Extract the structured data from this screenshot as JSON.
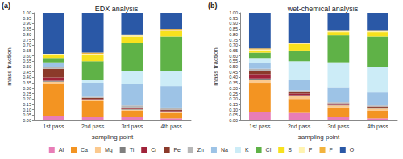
{
  "chart_data": [
    {
      "type": "bar",
      "title": "EDX analysis",
      "annotations": [
        "(a)"
      ],
      "xlabel": "sampling point",
      "ylabel": "mass fraction",
      "categories": [
        "1st pass",
        "2nd pass",
        "3rd pass",
        "4th pass"
      ],
      "stacked": true,
      "grid": false,
      "legend": "bottom",
      "ylim": [
        0,
        1
      ],
      "yticks": [
        {
          "value": 0,
          "label": "0.00"
        },
        {
          "value": 0.05,
          "label": "0.05"
        },
        {
          "value": 0.1,
          "label": "0.10"
        },
        {
          "value": 0.15,
          "label": "0.15"
        },
        {
          "value": 0.2,
          "label": "0.20"
        },
        {
          "value": 0.25,
          "label": "0.25"
        },
        {
          "value": 0.3,
          "label": "0.30"
        },
        {
          "value": 0.35,
          "label": "0.35"
        },
        {
          "value": 0.4,
          "label": "0.40"
        },
        {
          "value": 0.45,
          "label": "0.45"
        },
        {
          "value": 0.5,
          "label": "0.50"
        },
        {
          "value": 0.55,
          "label": "0.55"
        },
        {
          "value": 0.6,
          "label": "0.60"
        },
        {
          "value": 0.65,
          "label": "0.65"
        },
        {
          "value": 0.7,
          "label": "0.70"
        },
        {
          "value": 0.75,
          "label": "0.75"
        },
        {
          "value": 0.8,
          "label": "0.80"
        },
        {
          "value": 0.85,
          "label": "0.85"
        },
        {
          "value": 0.9,
          "label": "0.90"
        },
        {
          "value": 0.95,
          "label": "0.95"
        },
        {
          "value": 1,
          "label": "1.00"
        }
      ],
      "series": [
        {
          "name": "Al",
          "color": "#e87db7",
          "values": [
            0.04,
            0.03,
            0.03,
            0.02
          ]
        },
        {
          "name": "Ca",
          "color": "#f39422",
          "values": [
            0.3,
            0.15,
            0.06,
            0.05
          ]
        },
        {
          "name": "Mg",
          "color": "#fbc98e",
          "values": [
            0.02,
            0.01,
            0.01,
            0.01
          ]
        },
        {
          "name": "Ti",
          "color": "#7f7f7f",
          "values": [
            0.01,
            0.005,
            0.005,
            0.005
          ]
        },
        {
          "name": "Cr",
          "color": "#a0233a",
          "values": [
            0.03,
            0.005,
            0.005,
            0.005
          ]
        },
        {
          "name": "Fe",
          "color": "#8b3a2a",
          "values": [
            0.08,
            0.01,
            0.01,
            0.01
          ]
        },
        {
          "name": "Zn",
          "color": "#b7b7b7",
          "values": [
            0.02,
            0.01,
            0.02,
            0.02
          ]
        },
        {
          "name": "Na",
          "color": "#9dc3e6",
          "values": [
            0.03,
            0.13,
            0.2,
            0.2
          ]
        },
        {
          "name": "K",
          "color": "#ccecf7",
          "values": [
            0.01,
            0.03,
            0.12,
            0.14
          ]
        },
        {
          "name": "Cl",
          "color": "#5fb247",
          "values": [
            0.04,
            0.17,
            0.26,
            0.32
          ]
        },
        {
          "name": "S",
          "color": "#f7e11e",
          "values": [
            0.03,
            0.06,
            0.06,
            0.05
          ]
        },
        {
          "name": "P",
          "color": "#fff3b0",
          "values": [
            0.01,
            0.01,
            0.01,
            0.01
          ]
        },
        {
          "name": "F",
          "color": "#f2b33d",
          "values": [
            0.0,
            0.01,
            0.01,
            0.01
          ]
        },
        {
          "name": "O",
          "color": "#2a58a6",
          "values": [
            0.38,
            0.37,
            0.2,
            0.15
          ]
        }
      ]
    },
    {
      "type": "bar",
      "title": "wet-chemical analysis",
      "annotations": [
        "(b)"
      ],
      "xlabel": "sampling point",
      "ylabel": "mass fraction",
      "categories": [
        "1st pass",
        "2nd pass",
        "3rd pass",
        "4th pass"
      ],
      "stacked": true,
      "grid": false,
      "legend": "bottom",
      "ylim": [
        0,
        1
      ],
      "yticks": [
        {
          "value": 0,
          "label": "0.00"
        },
        {
          "value": 0.05,
          "label": "0.05"
        },
        {
          "value": 0.1,
          "label": "0.10"
        },
        {
          "value": 0.15,
          "label": "0.15"
        },
        {
          "value": 0.2,
          "label": "0.20"
        },
        {
          "value": 0.25,
          "label": "0.25"
        },
        {
          "value": 0.3,
          "label": "0.30"
        },
        {
          "value": 0.35,
          "label": "0.35"
        },
        {
          "value": 0.4,
          "label": "0.40"
        },
        {
          "value": 0.45,
          "label": "0.45"
        },
        {
          "value": 0.5,
          "label": "0.50"
        },
        {
          "value": 0.55,
          "label": "0.55"
        },
        {
          "value": 0.6,
          "label": "0.60"
        },
        {
          "value": 0.65,
          "label": "0.65"
        },
        {
          "value": 0.7,
          "label": "0.70"
        },
        {
          "value": 0.75,
          "label": "0.75"
        },
        {
          "value": 0.8,
          "label": "0.80"
        },
        {
          "value": 0.85,
          "label": "0.85"
        },
        {
          "value": 0.9,
          "label": "0.90"
        },
        {
          "value": 0.95,
          "label": "0.95"
        },
        {
          "value": 1,
          "label": "1.00"
        }
      ],
      "series": [
        {
          "name": "Al",
          "color": "#e87db7",
          "values": [
            0.08,
            0.07,
            0.03,
            0.02
          ]
        },
        {
          "name": "Ca",
          "color": "#f39422",
          "values": [
            0.27,
            0.13,
            0.09,
            0.07
          ]
        },
        {
          "name": "Mg",
          "color": "#fbc98e",
          "values": [
            0.03,
            0.03,
            0.02,
            0.02
          ]
        },
        {
          "name": "Ti",
          "color": "#7f7f7f",
          "values": [
            0.01,
            0.005,
            0.005,
            0.005
          ]
        },
        {
          "name": "Cr",
          "color": "#a0233a",
          "values": [
            0.04,
            0.015,
            0.005,
            0.005
          ]
        },
        {
          "name": "Fe",
          "color": "#8b3a2a",
          "values": [
            0.03,
            0.02,
            0.01,
            0.01
          ]
        },
        {
          "name": "Zn",
          "color": "#b7b7b7",
          "values": [
            0.02,
            0.01,
            0.01,
            0.01
          ]
        },
        {
          "name": "Na",
          "color": "#9dc3e6",
          "values": [
            0.05,
            0.1,
            0.14,
            0.12
          ]
        },
        {
          "name": "K",
          "color": "#ccecf7",
          "values": [
            0.05,
            0.17,
            0.23,
            0.24
          ]
        },
        {
          "name": "Cl",
          "color": "#5fb247",
          "values": [
            0.05,
            0.1,
            0.25,
            0.28
          ]
        },
        {
          "name": "S",
          "color": "#f7e11e",
          "values": [
            0.02,
            0.06,
            0.03,
            0.04
          ]
        },
        {
          "name": "P",
          "color": "#fff3b0",
          "values": [
            0.01,
            0.005,
            0.01,
            0.01
          ]
        },
        {
          "name": "F",
          "color": "#f2b33d",
          "values": [
            0.01,
            0.005,
            0.01,
            0.01
          ]
        },
        {
          "name": "O",
          "color": "#2a58a6",
          "values": [
            0.33,
            0.28,
            0.16,
            0.16
          ]
        }
      ]
    }
  ]
}
